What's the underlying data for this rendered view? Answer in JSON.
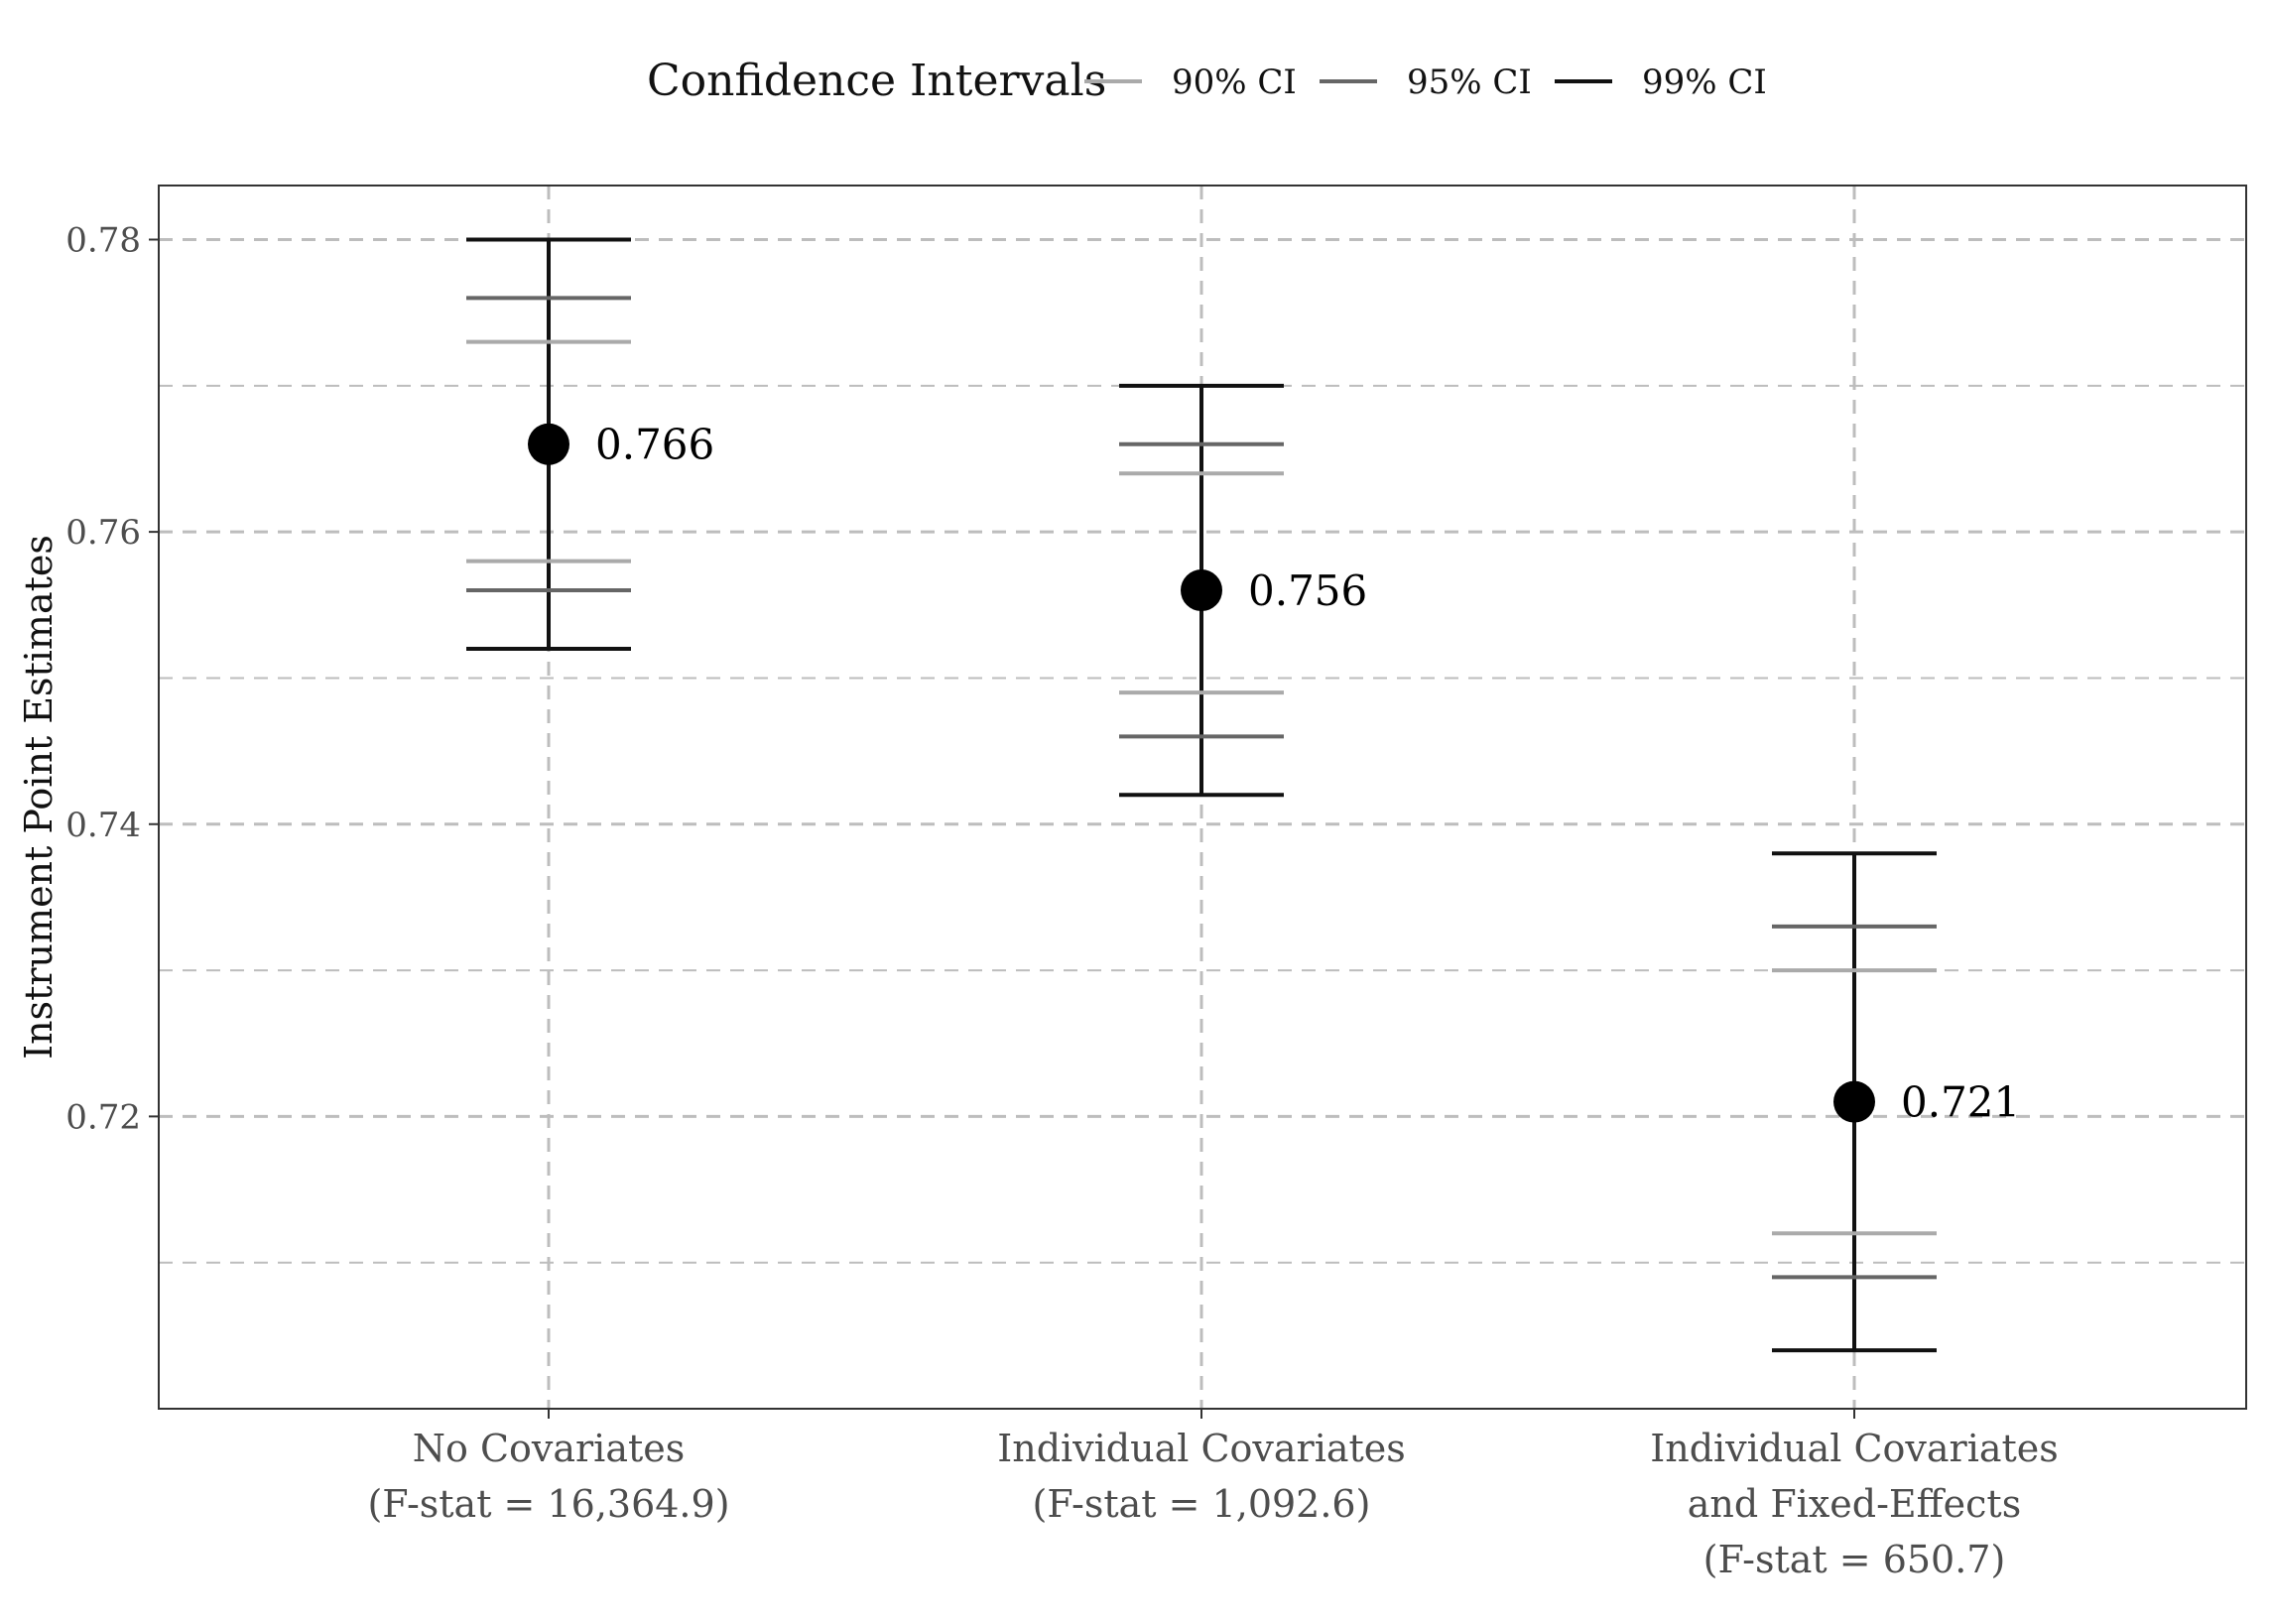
{
  "chart_data": {
    "type": "scatter",
    "ylabel": "Instrument Point Estimates",
    "ylim": [
      0.7,
      0.7837
    ],
    "y_ticks": [
      0.72,
      0.74,
      0.76,
      0.78
    ],
    "y_tick_labels": [
      "0.72",
      "0.74",
      "0.76",
      "0.78"
    ],
    "y_minor_ticks": [
      0.71,
      0.73,
      0.75,
      0.77
    ],
    "grid": true,
    "legend": {
      "title": "Confidence Intervals",
      "position": "top",
      "entries": [
        {
          "label": "90% CI",
          "color": "#aaaaaa"
        },
        {
          "label": "95% CI",
          "color": "#666666"
        },
        {
          "label": "99% CI",
          "color": "#111111"
        }
      ]
    },
    "categories": [
      {
        "label_lines": [
          "No Covariates",
          "(F-stat = 16,364.9)"
        ],
        "estimate": 0.766,
        "estimate_label": "0.766",
        "ci90": [
          0.758,
          0.773
        ],
        "ci95": [
          0.756,
          0.776
        ],
        "ci99": [
          0.752,
          0.78
        ]
      },
      {
        "label_lines": [
          "Individual Covariates",
          "(F-stat = 1,092.6)"
        ],
        "estimate": 0.756,
        "estimate_label": "0.756",
        "ci90": [
          0.749,
          0.764
        ],
        "ci95": [
          0.746,
          0.766
        ],
        "ci99": [
          0.742,
          0.77
        ]
      },
      {
        "label_lines": [
          "Individual Covariates",
          "and Fixed-Effects",
          "(F-stat = 650.7)"
        ],
        "estimate": 0.721,
        "estimate_label": "0.721",
        "ci90": [
          0.712,
          0.73
        ],
        "ci95": [
          0.709,
          0.733
        ],
        "ci99": [
          0.704,
          0.738
        ]
      }
    ],
    "colors": {
      "grid": "#bdbdbd",
      "panel_border": "#333333",
      "point": "#000000"
    }
  }
}
